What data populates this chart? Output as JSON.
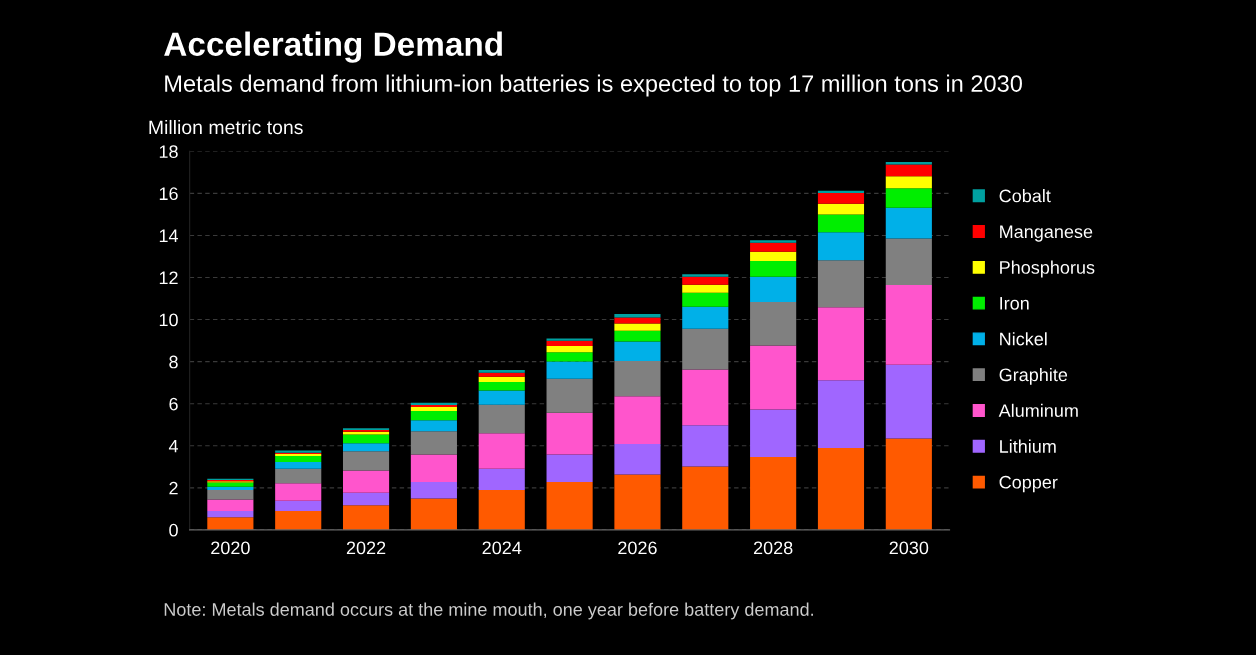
{
  "chart_data": {
    "type": "bar",
    "stacked": true,
    "title": "Accelerating Demand",
    "subtitle": "Metals demand from lithium-ion batteries is expected to top 17 million tons in 2030",
    "ylabel": "Million metric tons",
    "categories": [
      "2020",
      null,
      "2022",
      null,
      "2024",
      null,
      "2026",
      null,
      "2028",
      null,
      "2030"
    ],
    "series": [
      {
        "name": "Copper",
        "color": "#ff5a00",
        "values": [
          0.6,
          0.9,
          1.17,
          1.49,
          1.9,
          2.28,
          2.63,
          3.01,
          3.47,
          3.89,
          4.34
        ]
      },
      {
        "name": "Lithium",
        "color": "#a066ff",
        "values": [
          0.3,
          0.48,
          0.6,
          0.79,
          1.01,
          1.3,
          1.45,
          1.96,
          2.26,
          3.23,
          3.51
        ]
      },
      {
        "name": "Aluminum",
        "color": "#ff55cc",
        "values": [
          0.55,
          0.84,
          1.05,
          1.3,
          1.68,
          1.99,
          2.28,
          2.66,
          3.04,
          3.47,
          3.79
        ]
      },
      {
        "name": "Graphite",
        "color": "#808080",
        "values": [
          0.45,
          0.69,
          0.92,
          1.11,
          1.36,
          1.62,
          1.67,
          1.93,
          2.06,
          2.23,
          2.21
        ]
      },
      {
        "name": "Nickel",
        "color": "#00b0e8",
        "values": [
          0.15,
          0.32,
          0.38,
          0.52,
          0.68,
          0.82,
          0.93,
          1.05,
          1.2,
          1.33,
          1.47
        ]
      },
      {
        "name": "Iron",
        "color": "#00ee00",
        "values": [
          0.2,
          0.28,
          0.42,
          0.44,
          0.4,
          0.44,
          0.51,
          0.66,
          0.75,
          0.84,
          0.92
        ]
      },
      {
        "name": "Phosphorus",
        "color": "#ffff00",
        "values": [
          0.06,
          0.1,
          0.13,
          0.19,
          0.25,
          0.29,
          0.34,
          0.38,
          0.44,
          0.52,
          0.57
        ]
      },
      {
        "name": "Manganese",
        "color": "#ff0000",
        "values": [
          0.06,
          0.06,
          0.08,
          0.1,
          0.19,
          0.25,
          0.29,
          0.38,
          0.43,
          0.51,
          0.56
        ]
      },
      {
        "name": "Cobalt",
        "color": "#00a0a0",
        "values": [
          0.06,
          0.1,
          0.08,
          0.11,
          0.13,
          0.11,
          0.17,
          0.13,
          0.12,
          0.11,
          0.12
        ]
      }
    ],
    "ylim": [
      0,
      18
    ],
    "yticks": [
      0,
      2,
      4,
      6,
      8,
      10,
      12,
      14,
      16,
      18
    ],
    "grid": "y",
    "legend": "right",
    "annotations": [
      "Note: Metals demand occurs at the mine mouth, one year before battery demand."
    ]
  }
}
